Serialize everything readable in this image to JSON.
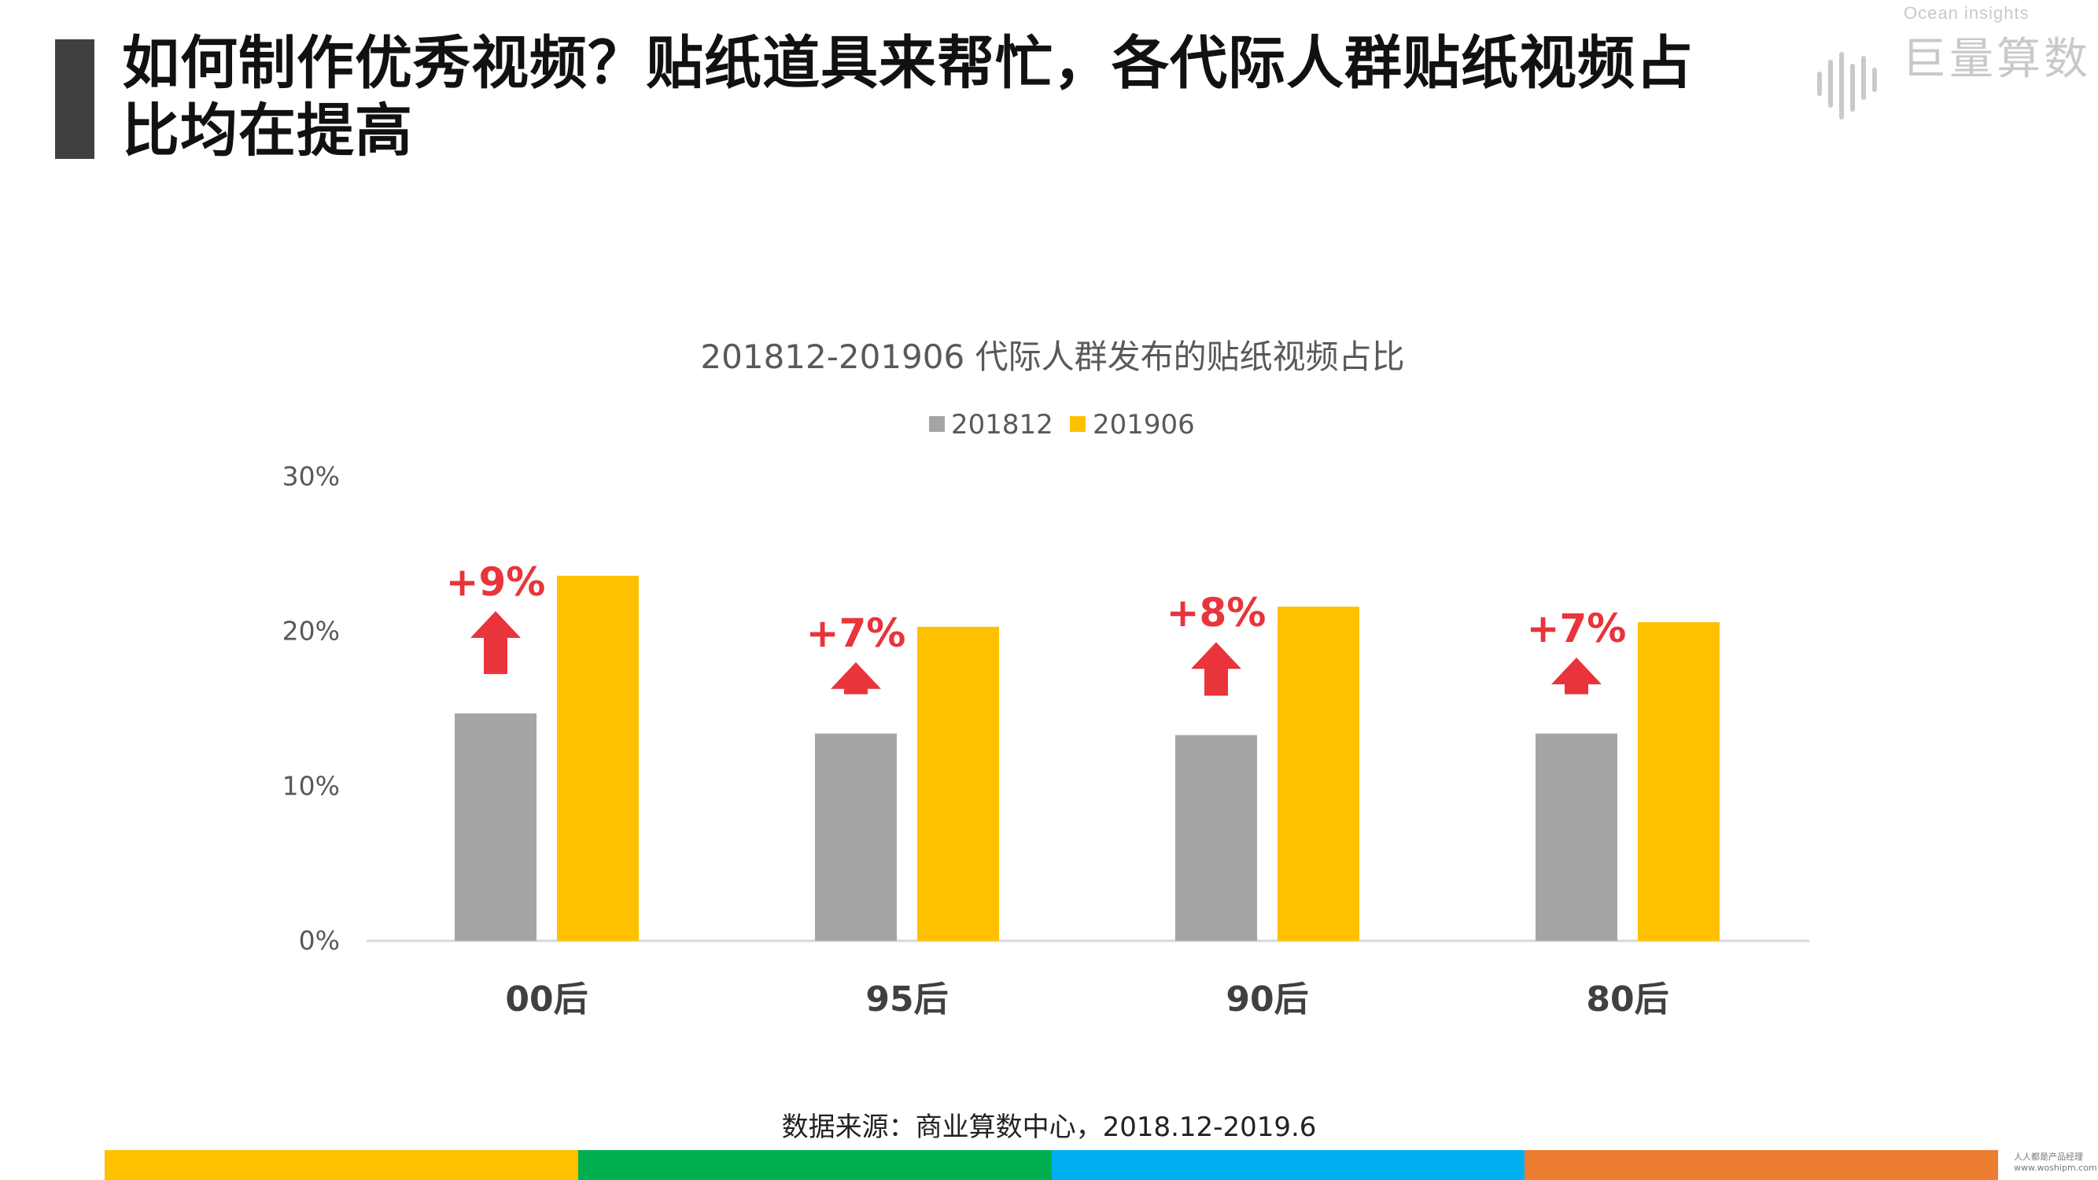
{
  "header": {
    "title": "如何制作优秀视频？贴纸道具来帮忙，各代际人群贴纸视频占比均在提高"
  },
  "logo": {
    "subtitle": "Ocean insights",
    "name": "巨量算数"
  },
  "chart_data": {
    "type": "bar",
    "title": "201812-201906 代际人群发布的贴纸视频占比",
    "categories": [
      "00后",
      "95后",
      "90后",
      "80后"
    ],
    "series": [
      {
        "name": "201812",
        "color": "#a5a5a5",
        "values": [
          14.7,
          13.4,
          13.3,
          13.4
        ]
      },
      {
        "name": "201906",
        "color": "#ffc000",
        "values": [
          23.6,
          20.3,
          21.6,
          20.6
        ]
      }
    ],
    "ylim": [
      0,
      30
    ],
    "yticks": [
      "0%",
      "10%",
      "20%",
      "30%"
    ],
    "ytick_values": [
      0,
      10,
      20,
      30
    ],
    "annotations": [
      "+9%",
      "+7%",
      "+8%",
      "+7%"
    ],
    "annotation_color": "#e8343a",
    "legend_position": "top-center",
    "grid": false
  },
  "source": "数据来源：商业算数中心，2018.12-2019.6",
  "footer": {
    "stripe_colors": [
      "#ffc000",
      "#00b050",
      "#00b0f0",
      "#ed7d31"
    ],
    "watermark_line1": "人人都是产品经理",
    "watermark_line2": "www.woshipm.com"
  }
}
